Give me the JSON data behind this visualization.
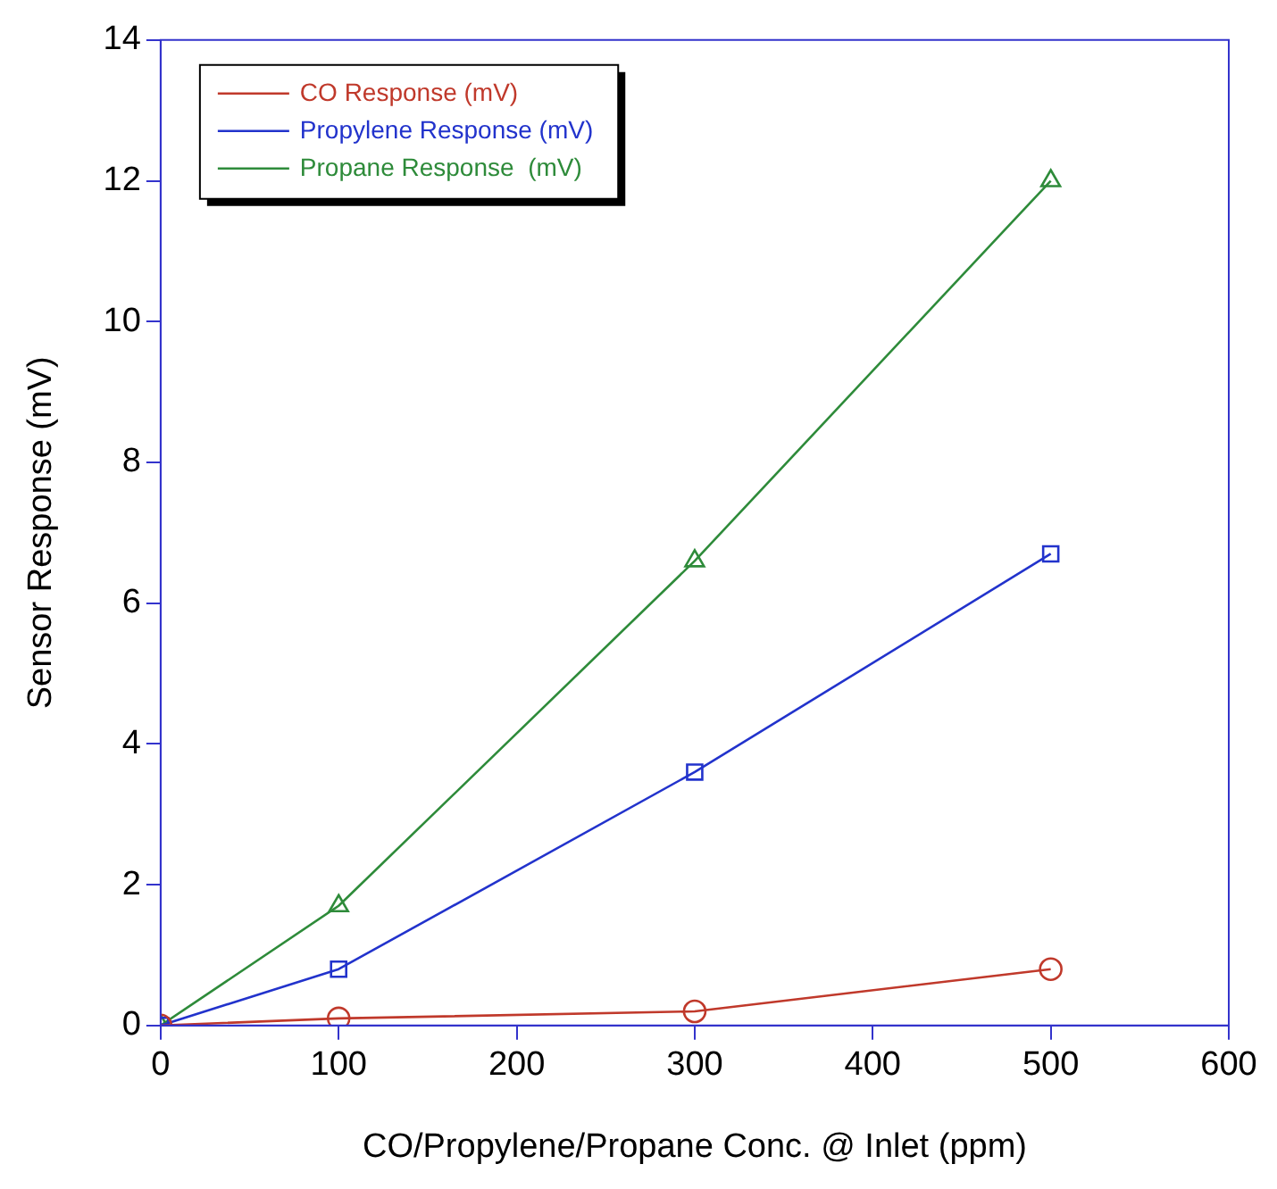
{
  "chart_data": {
    "type": "line",
    "xlabel": "CO/Propylene/Propane Conc. @ Inlet (ppm)",
    "ylabel": "Sensor Response (mV)",
    "x": [
      0,
      100,
      300,
      500
    ],
    "xlim": [
      0,
      600
    ],
    "xticks": [
      0,
      100,
      200,
      300,
      400,
      500,
      600
    ],
    "ylim": [
      0,
      14
    ],
    "yticks": [
      0,
      2,
      4,
      6,
      8,
      10,
      12,
      14
    ],
    "grid": false,
    "legend": "top left",
    "series": [
      {
        "name": "CO Response (mV)",
        "color": "#c0392b",
        "marker": "circle",
        "values": [
          0,
          0.1,
          0.2,
          0.8
        ]
      },
      {
        "name": "Propylene Response (mV)",
        "color": "#2233cc",
        "marker": "square",
        "values": [
          0,
          0.8,
          3.6,
          6.7
        ]
      },
      {
        "name": "Propane Response  (mV)",
        "color": "#2e8b3a",
        "marker": "triangle",
        "values": [
          0,
          1.7,
          6.6,
          12.0
        ]
      }
    ]
  }
}
